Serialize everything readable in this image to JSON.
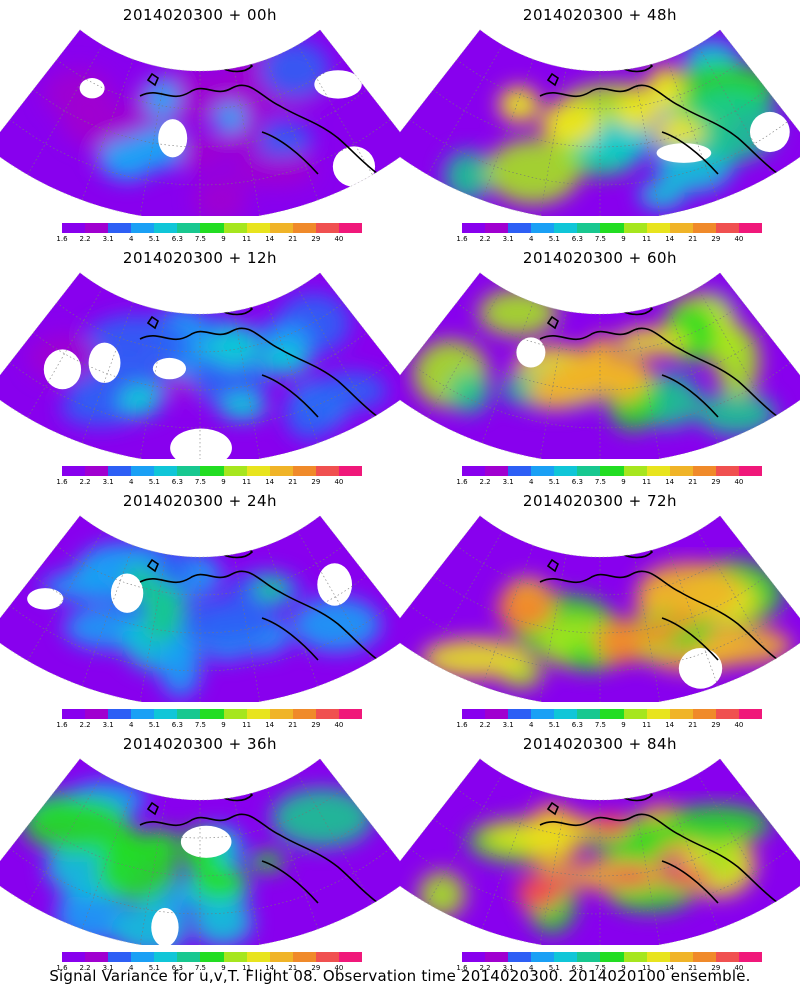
{
  "panels": [
    {
      "title": "2014020300 + 00h",
      "intensity": 0.15
    },
    {
      "title": "2014020300 + 48h",
      "intensity": 0.55
    },
    {
      "title": "2014020300 + 12h",
      "intensity": 0.22
    },
    {
      "title": "2014020300 + 60h",
      "intensity": 0.65
    },
    {
      "title": "2014020300 + 24h",
      "intensity": 0.32
    },
    {
      "title": "2014020300 + 72h",
      "intensity": 0.75
    },
    {
      "title": "2014020300 + 36h",
      "intensity": 0.45
    },
    {
      "title": "2014020300 + 84h",
      "intensity": 0.82
    }
  ],
  "colorbar": {
    "ticks": [
      "1.6",
      "2.2",
      "3.1",
      "4",
      "5.1",
      "6.3",
      "7.5",
      "9",
      "11",
      "14",
      "21",
      "29",
      "40"
    ],
    "colors": [
      "#8800ee",
      "#a000d0",
      "#2d5ff5",
      "#1aa0f5",
      "#10c6d8",
      "#18c890",
      "#22dd22",
      "#a6e61e",
      "#e8e41e",
      "#f0b428",
      "#f08a2a",
      "#f05050",
      "#f0187a"
    ]
  },
  "caption": "Signal Variance for u,v,T. Flight 08. Observation time 2014020300. 2014020100 ensemble."
}
